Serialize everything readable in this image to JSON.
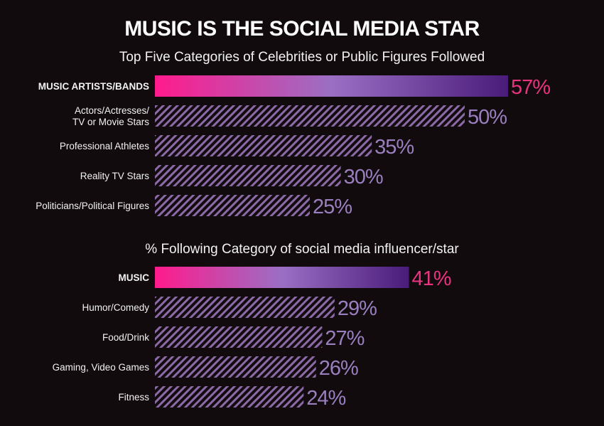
{
  "colors": {
    "background": "#120b0e",
    "highlight_start": "#ff1a8c",
    "highlight_end": "#4a1c7a",
    "hatch_stripe": "#8b6aa7",
    "value_highlight": "#e8337f",
    "value_normal": "#9a7fbf",
    "label": "#f2f2f2"
  },
  "chart_data": [
    {
      "type": "bar",
      "orientation": "horizontal",
      "title": "MUSIC IS THE SOCIAL MEDIA STAR",
      "subtitle": "Top Five Categories of Celebrities or Public Figures Followed",
      "categories": [
        [
          "MUSIC ARTISTS/BANDS"
        ],
        [
          "Actors/Actresses/",
          "TV or Movie Stars"
        ],
        [
          "Professional Athletes"
        ],
        [
          "Reality TV Stars"
        ],
        [
          "Politicians/Political Figures"
        ]
      ],
      "values": [
        57,
        50,
        35,
        30,
        25
      ],
      "value_labels": [
        "57%",
        "50%",
        "35%",
        "30%",
        "25%"
      ],
      "highlight_index": 0,
      "xlim": [
        0,
        57
      ]
    },
    {
      "type": "bar",
      "orientation": "horizontal",
      "subtitle": "% Following Category of social media influencer/star",
      "categories": [
        [
          "MUSIC"
        ],
        [
          "Humor/Comedy"
        ],
        [
          "Food/Drink"
        ],
        [
          "Gaming, Video Games"
        ],
        [
          "Fitness"
        ]
      ],
      "values": [
        41,
        29,
        27,
        26,
        24
      ],
      "value_labels": [
        "41%",
        "29%",
        "27%",
        "26%",
        "24%"
      ],
      "highlight_index": 0,
      "xlim": [
        0,
        57
      ]
    }
  ]
}
